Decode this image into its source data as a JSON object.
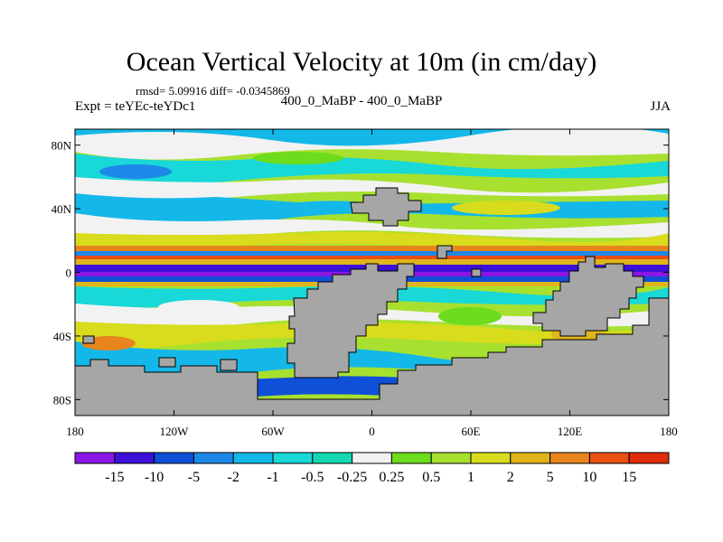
{
  "title": "Ocean Vertical Velocity at 10m (in cm/day)",
  "rmsd_line": "rmsd= 5.09916 diff= -0.0345869",
  "left_label": "Expt = teYEc-teYDc1",
  "center_label": "400_0_MaBP - 400_0_MaBP",
  "right_label": "JJA",
  "map": {
    "lat_ticks": [
      "80N",
      "40N",
      "0",
      "40S",
      "80S"
    ],
    "lat_values": [
      80,
      40,
      0,
      -40,
      -80
    ],
    "lon_ticks": [
      "180",
      "120W",
      "60W",
      "0",
      "60E",
      "120E",
      "180"
    ],
    "lon_values": [
      -180,
      -120,
      -60,
      0,
      60,
      120,
      180
    ],
    "lat_range": [
      -90,
      90
    ],
    "lon_range": [
      -180,
      180
    ],
    "land_color": "#a6a6a6"
  },
  "colorbar": {
    "labels": [
      "-15",
      "-10",
      "-5",
      "-2",
      "-1",
      "-0.5",
      "-0.25",
      "0.25",
      "0.5",
      "1",
      "2",
      "5",
      "10",
      "15"
    ],
    "colors": [
      "#8a16e6",
      "#3c10d8",
      "#1050d8",
      "#1e88e8",
      "#14b8e8",
      "#18d8d8",
      "#14d8b4",
      "#f2f2f2",
      "#6cdc1c",
      "#a8e030",
      "#d8dc1c",
      "#e0b41c",
      "#e8841c",
      "#e85014",
      "#e02c0c"
    ]
  }
}
